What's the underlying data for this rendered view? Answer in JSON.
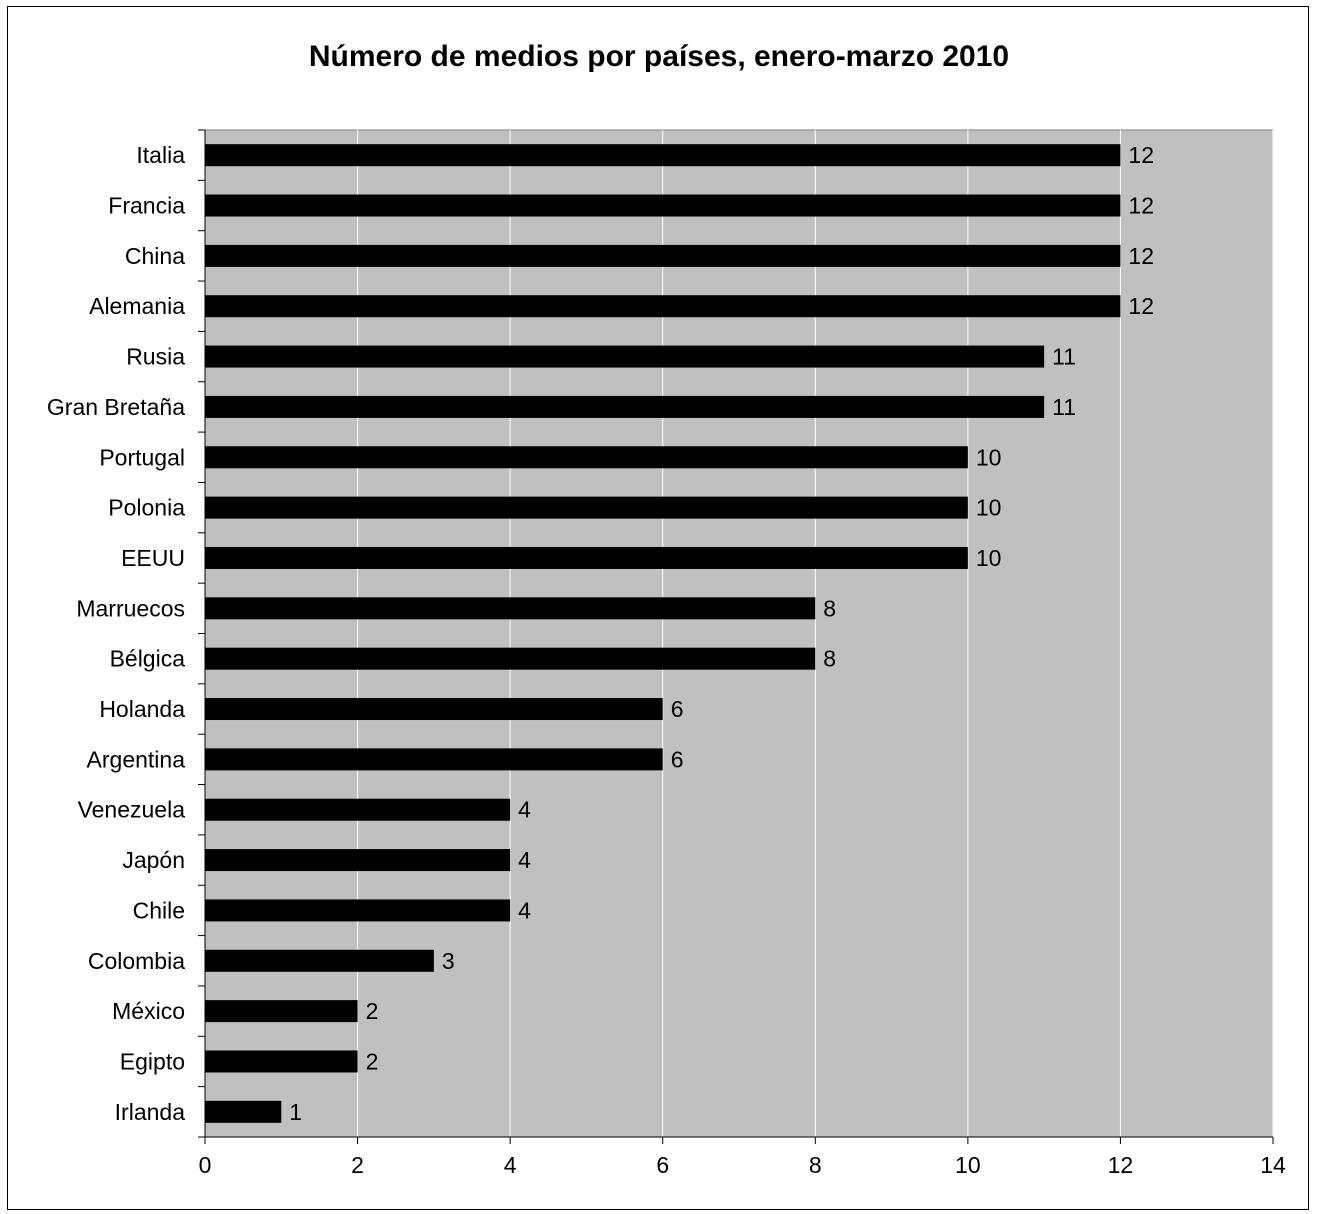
{
  "chart_data": {
    "type": "bar",
    "orientation": "horizontal",
    "title": "Número de medios por países, enero-marzo 2010",
    "categories": [
      "Italia",
      "Francia",
      "China",
      "Alemania",
      "Rusia",
      "Gran Bretaña",
      "Portugal",
      "Polonia",
      "EEUU",
      "Marruecos",
      "Bélgica",
      "Holanda",
      "Argentina",
      "Venezuela",
      "Japón",
      "Chile",
      "Colombia",
      "México",
      "Egipto",
      "Irlanda"
    ],
    "values": [
      12,
      12,
      12,
      12,
      11,
      11,
      10,
      10,
      10,
      8,
      8,
      6,
      6,
      4,
      4,
      4,
      3,
      2,
      2,
      1
    ],
    "xlim": [
      0,
      14
    ],
    "xticks": [
      0,
      2,
      4,
      6,
      8,
      10,
      12,
      14
    ],
    "grid": true,
    "plot_background": "#c0c0c0",
    "bar_color": "#000000",
    "gridline_color": "#ffffff",
    "data_labels": true
  }
}
